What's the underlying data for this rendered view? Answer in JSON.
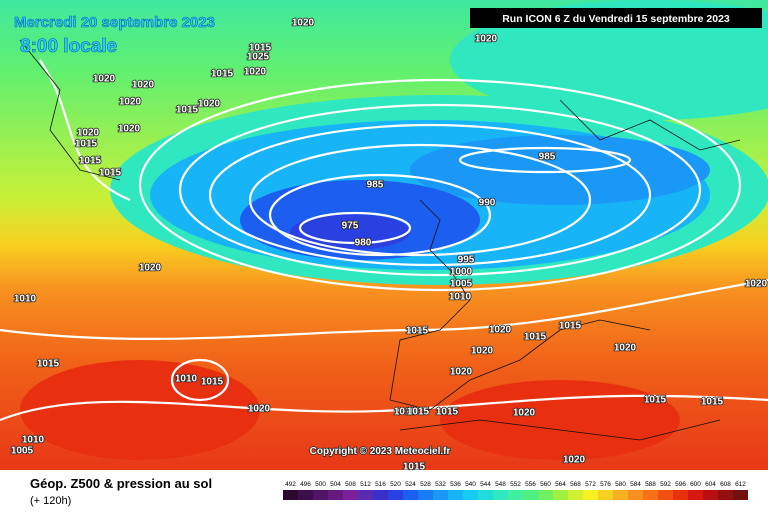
{
  "header": {
    "date": "Mercredi 20 septembre 2023",
    "time": "8:00 locale",
    "run": "Run ICON 6 Z du Vendredi 15 septembre 2023"
  },
  "copyright": "Copyright © 2023 Meteociel.fr",
  "footer": {
    "title": "Géop. Z500 & pression au sol",
    "subtitle": "(+ 120h)"
  },
  "legend": {
    "labels": [
      "492",
      "496",
      "500",
      "504",
      "508",
      "512",
      "516",
      "520",
      "524",
      "528",
      "532",
      "536",
      "540",
      "544",
      "548",
      "552",
      "556",
      "560",
      "564",
      "568",
      "572",
      "576",
      "580",
      "584",
      "588",
      "592",
      "596",
      "600",
      "604",
      "608",
      "612"
    ],
    "colors": [
      "#2b0a2e",
      "#3d0f4a",
      "#521466",
      "#661a80",
      "#7a2099",
      "#5a2ab0",
      "#3a30c8",
      "#2a40e0",
      "#1c5ef0",
      "#1a7cf5",
      "#1a98f8",
      "#18b4f8",
      "#16ccf0",
      "#20dcdc",
      "#30e8c0",
      "#40f0a0",
      "#50f080",
      "#70f060",
      "#a0f040",
      "#d0f030",
      "#f8f020",
      "#f8d020",
      "#f8b020",
      "#f89020",
      "#f87018",
      "#f05010",
      "#e83010",
      "#d81810",
      "#b81010",
      "#901010",
      "#701010"
    ]
  },
  "isobar_labels": [
    "1020",
    "1020",
    "1015",
    "1025",
    "1015",
    "1020",
    "1020",
    "1020",
    "1020",
    "1015",
    "1020",
    "1020",
    "1020",
    "1015",
    "1015",
    "1015",
    "985",
    "985",
    "990",
    "975",
    "980",
    "995",
    "1000",
    "1005",
    "1010",
    "1020",
    "1020",
    "1010",
    "1015",
    "1015",
    "1020",
    "1015",
    "1015",
    "1020",
    "1020",
    "1010",
    "1015",
    "1020",
    "1020",
    "1010",
    "1015",
    "1015",
    "1020",
    "1015",
    "1015",
    "1010",
    "1005",
    "1020",
    "1015"
  ]
}
